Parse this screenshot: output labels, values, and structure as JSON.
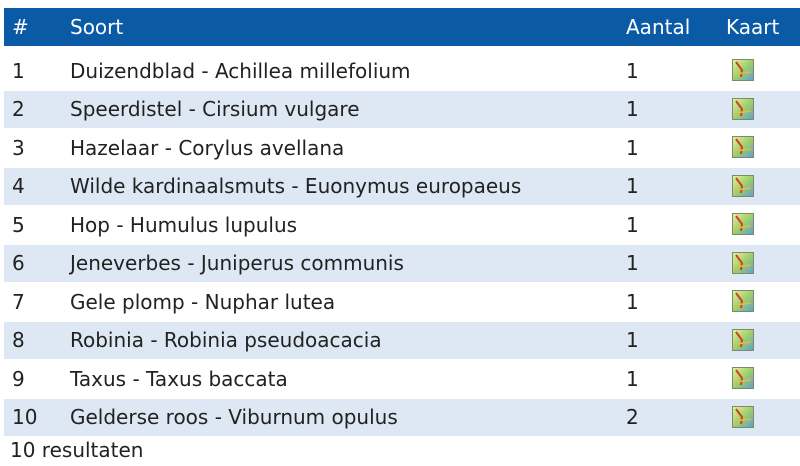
{
  "table": {
    "columns": [
      "#",
      "Soort",
      "Aantal",
      "Kaart"
    ],
    "rows": [
      [
        "1",
        "Duizendblad - Achillea millefolium",
        "1"
      ],
      [
        "2",
        "Speerdistel - Cirsium vulgare",
        "1"
      ],
      [
        "3",
        "Hazelaar - Corylus avellana",
        "1"
      ],
      [
        "4",
        "Wilde kardinaalsmuts - Euonymus europaeus",
        "1"
      ],
      [
        "5",
        "Hop - Humulus lupulus",
        "1"
      ],
      [
        "6",
        "Jeneverbes - Juniperus communis",
        "1"
      ],
      [
        "7",
        "Gele plomp - Nuphar lutea",
        "1"
      ],
      [
        "8",
        "Robinia - Robinia pseudoacacia",
        "1"
      ],
      [
        "9",
        "Taxus - Taxus baccata",
        "1"
      ],
      [
        "10",
        "Gelderse roos - Viburnum opulus",
        "2"
      ]
    ],
    "footer": "10 resultaten"
  }
}
